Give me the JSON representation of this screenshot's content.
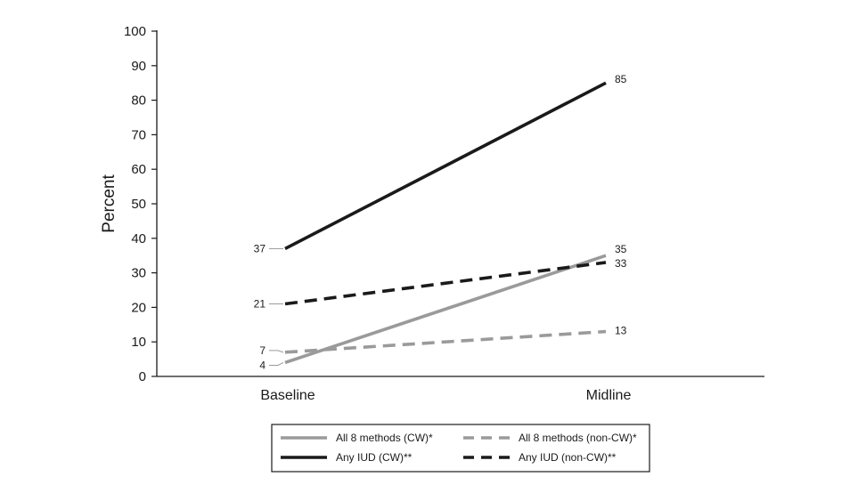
{
  "chart_data": {
    "type": "line",
    "categories": [
      "Baseline",
      "Midline"
    ],
    "ylabel": "Percent",
    "xlabel": "",
    "ylim": [
      0,
      100
    ],
    "yticks": [
      0,
      10,
      20,
      30,
      40,
      50,
      60,
      70,
      80,
      90,
      100
    ],
    "grid": false,
    "legend_position": "bottom",
    "series": [
      {
        "name": "All 8 methods (CW)*",
        "values": [
          4,
          35
        ],
        "color": "#9a9a9a",
        "dash": "solid"
      },
      {
        "name": "All 8 methods (non-CW)*",
        "values": [
          7,
          13
        ],
        "color": "#9a9a9a",
        "dash": "dashed"
      },
      {
        "name": "Any IUD (CW)**",
        "values": [
          37,
          85
        ],
        "color": "#1a1a1a",
        "dash": "solid"
      },
      {
        "name": "Any IUD (non-CW)**",
        "values": [
          21,
          33
        ],
        "color": "#1a1a1a",
        "dash": "dashed"
      }
    ]
  }
}
